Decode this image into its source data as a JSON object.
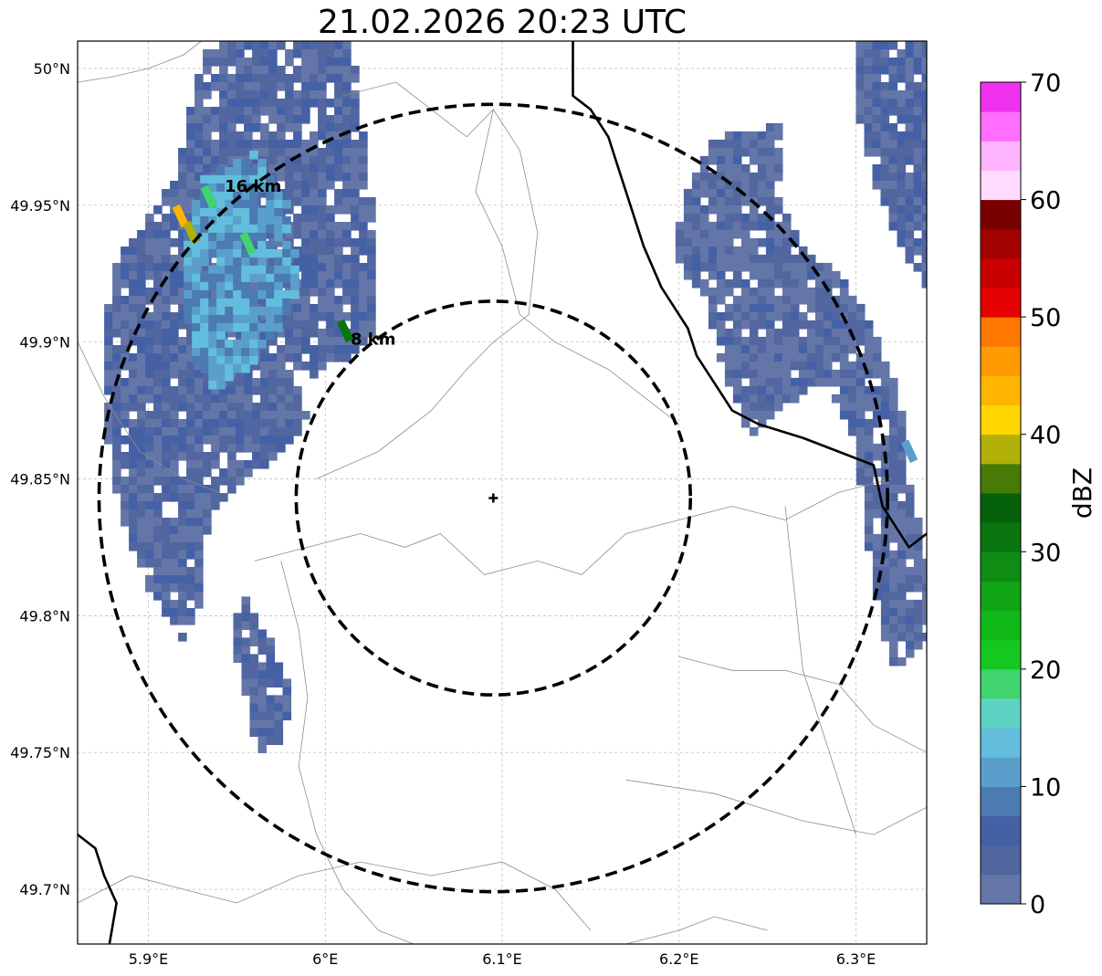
{
  "title": "21.02.2026 20:23 UTC",
  "map": {
    "lon_range": [
      5.86,
      6.34
    ],
    "lat_range": [
      49.68,
      50.01
    ],
    "lon_ticks": [
      {
        "value": 5.9,
        "label": "5.9°E"
      },
      {
        "value": 6.0,
        "label": "6°E"
      },
      {
        "value": 6.1,
        "label": "6.1°E"
      },
      {
        "value": 6.2,
        "label": "6.2°E"
      },
      {
        "value": 6.3,
        "label": "6.3°E"
      }
    ],
    "lat_ticks": [
      {
        "value": 50.0,
        "label": "50°N"
      },
      {
        "value": 49.95,
        "label": "49.95°N"
      },
      {
        "value": 49.9,
        "label": "49.9°N"
      },
      {
        "value": 49.85,
        "label": "49.85°N"
      },
      {
        "value": 49.8,
        "label": "49.8°N"
      },
      {
        "value": 49.75,
        "label": "49.75°N"
      },
      {
        "value": 49.7,
        "label": "49.7°N"
      }
    ],
    "center": {
      "lon": 6.095,
      "lat": 49.843
    },
    "range_rings": [
      {
        "km": 8,
        "label": "8 km"
      },
      {
        "km": 16,
        "label": "16 km"
      }
    ]
  },
  "colorbar": {
    "label": "dBZ",
    "min": 0,
    "max": 70,
    "ticks": [
      0,
      10,
      20,
      30,
      40,
      50,
      60,
      70
    ],
    "colors": [
      "#6476a8",
      "#5266a0",
      "#4461a6",
      "#4b7bb2",
      "#5a9fcb",
      "#63bedd",
      "#5fd3c3",
      "#3fd46e",
      "#14c820",
      "#10b818",
      "#0fa514",
      "#0e8c14",
      "#0b7510",
      "#05600a",
      "#487a08",
      "#b0b008",
      "#ffd600",
      "#ffb400",
      "#ff9a00",
      "#ff7800",
      "#e40000",
      "#c80000",
      "#a30000",
      "#7a0000",
      "#ffdcff",
      "#ffb4ff",
      "#ff6eff",
      "#f032f0"
    ]
  },
  "echoes": [
    {
      "name": "northwest-cell",
      "poly": [
        [
          5.935,
          50.01
        ],
        [
          6.015,
          50.01
        ],
        [
          6.025,
          49.96
        ],
        [
          6.03,
          49.93
        ],
        [
          6.03,
          49.905
        ],
        [
          6.015,
          49.895
        ],
        [
          5.985,
          49.885
        ],
        [
          5.99,
          49.87
        ],
        [
          5.975,
          49.86
        ],
        [
          5.965,
          49.855
        ],
        [
          5.945,
          49.845
        ],
        [
          5.935,
          49.835
        ],
        [
          5.93,
          49.82
        ],
        [
          5.93,
          49.805
        ],
        [
          5.92,
          49.79
        ],
        [
          5.9,
          49.81
        ],
        [
          5.885,
          49.835
        ],
        [
          5.875,
          49.87
        ],
        [
          5.875,
          49.905
        ],
        [
          5.882,
          49.93
        ],
        [
          5.9,
          49.945
        ],
        [
          5.915,
          49.96
        ],
        [
          5.925,
          49.99
        ]
      ],
      "base_dbz": 3
    },
    {
      "name": "northwest-core",
      "poly": [
        [
          5.93,
          49.96
        ],
        [
          5.96,
          49.97
        ],
        [
          5.98,
          49.95
        ],
        [
          5.985,
          49.92
        ],
        [
          5.975,
          49.905
        ],
        [
          5.955,
          49.89
        ],
        [
          5.935,
          49.88
        ],
        [
          5.925,
          49.895
        ],
        [
          5.92,
          49.92
        ],
        [
          5.922,
          49.94
        ]
      ],
      "base_dbz": 11
    },
    {
      "name": "southwest-trail",
      "poly": [
        [
          5.952,
          49.81
        ],
        [
          5.97,
          49.79
        ],
        [
          5.982,
          49.77
        ],
        [
          5.975,
          49.755
        ],
        [
          5.962,
          49.75
        ],
        [
          5.955,
          49.77
        ],
        [
          5.948,
          49.79
        ]
      ],
      "base_dbz": 3
    },
    {
      "name": "northeast-band",
      "poly": [
        [
          6.22,
          49.975
        ],
        [
          6.26,
          49.98
        ],
        [
          6.255,
          49.955
        ],
        [
          6.27,
          49.935
        ],
        [
          6.29,
          49.925
        ],
        [
          6.31,
          49.905
        ],
        [
          6.325,
          49.88
        ],
        [
          6.33,
          49.85
        ],
        [
          6.34,
          49.82
        ],
        [
          6.34,
          49.79
        ],
        [
          6.32,
          49.78
        ],
        [
          6.305,
          49.83
        ],
        [
          6.3,
          49.865
        ],
        [
          6.28,
          49.885
        ],
        [
          6.255,
          49.875
        ],
        [
          6.24,
          49.865
        ],
        [
          6.225,
          49.89
        ],
        [
          6.215,
          49.915
        ],
        [
          6.198,
          49.93
        ],
        [
          6.202,
          49.955
        ],
        [
          6.212,
          49.965
        ]
      ],
      "base_dbz": 2
    },
    {
      "name": "northeast-corner",
      "poly": [
        [
          6.3,
          50.01
        ],
        [
          6.34,
          50.01
        ],
        [
          6.34,
          49.92
        ],
        [
          6.325,
          49.935
        ],
        [
          6.31,
          49.96
        ],
        [
          6.3,
          49.985
        ]
      ],
      "base_dbz": 3
    }
  ],
  "hot_spots": [
    {
      "lon": 5.918,
      "lat": 49.946,
      "dbz": 44
    },
    {
      "lon": 5.924,
      "lat": 49.94,
      "dbz": 39
    },
    {
      "lon": 5.934,
      "lat": 49.953,
      "dbz": 19
    },
    {
      "lon": 5.956,
      "lat": 49.936,
      "dbz": 18
    },
    {
      "lon": 6.011,
      "lat": 49.904,
      "dbz": 32
    },
    {
      "lon": 6.33,
      "lat": 49.86,
      "dbz": 12
    }
  ],
  "roads": [
    {
      "name": "country-border-east",
      "pts": [
        [
          6.14,
          50.01
        ],
        [
          6.14,
          49.997
        ],
        [
          6.14,
          49.99
        ],
        [
          6.15,
          49.985
        ],
        [
          6.16,
          49.975
        ],
        [
          6.165,
          49.965
        ],
        [
          6.17,
          49.955
        ],
        [
          6.175,
          49.945
        ],
        [
          6.18,
          49.935
        ],
        [
          6.19,
          49.92
        ],
        [
          6.205,
          49.905
        ],
        [
          6.21,
          49.895
        ],
        [
          6.22,
          49.885
        ],
        [
          6.23,
          49.875
        ],
        [
          6.245,
          49.87
        ],
        [
          6.27,
          49.865
        ],
        [
          6.29,
          49.86
        ],
        [
          6.31,
          49.855
        ],
        [
          6.315,
          49.84
        ],
        [
          6.33,
          49.825
        ],
        [
          6.34,
          49.83
        ]
      ]
    },
    {
      "name": "country-border-southwest",
      "pts": [
        [
          5.86,
          49.72
        ],
        [
          5.87,
          49.715
        ],
        [
          5.875,
          49.705
        ],
        [
          5.882,
          49.695
        ],
        [
          5.878,
          49.68
        ]
      ]
    }
  ],
  "admin_lines": [
    [
      [
        5.86,
        49.995
      ],
      [
        5.88,
        49.997
      ],
      [
        5.9,
        50.0
      ],
      [
        5.92,
        50.005
      ],
      [
        5.93,
        50.01
      ]
    ],
    [
      [
        6.01,
        49.99
      ],
      [
        6.04,
        49.995
      ],
      [
        6.06,
        49.985
      ],
      [
        6.08,
        49.975
      ],
      [
        6.095,
        49.985
      ],
      [
        6.11,
        49.97
      ],
      [
        6.12,
        49.94
      ],
      [
        6.115,
        49.91
      ],
      [
        6.095,
        49.9
      ],
      [
        6.08,
        49.89
      ],
      [
        6.06,
        49.875
      ],
      [
        6.03,
        49.86
      ],
      [
        5.995,
        49.85
      ]
    ],
    [
      [
        6.095,
        49.985
      ],
      [
        6.085,
        49.955
      ],
      [
        6.1,
        49.935
      ],
      [
        6.11,
        49.91
      ],
      [
        6.13,
        49.9
      ],
      [
        6.16,
        49.89
      ],
      [
        6.18,
        49.88
      ],
      [
        6.2,
        49.87
      ]
    ],
    [
      [
        5.86,
        49.9
      ],
      [
        5.875,
        49.88
      ],
      [
        5.895,
        49.86
      ],
      [
        5.92,
        49.85
      ],
      [
        5.94,
        49.845
      ]
    ],
    [
      [
        5.96,
        49.82
      ],
      [
        5.99,
        49.825
      ],
      [
        6.02,
        49.83
      ],
      [
        6.045,
        49.825
      ],
      [
        6.065,
        49.83
      ],
      [
        6.09,
        49.815
      ],
      [
        6.12,
        49.82
      ],
      [
        6.145,
        49.815
      ],
      [
        6.17,
        49.83
      ],
      [
        6.2,
        49.835
      ],
      [
        6.23,
        49.84
      ],
      [
        6.26,
        49.835
      ],
      [
        6.29,
        49.845
      ],
      [
        6.32,
        49.85
      ]
    ],
    [
      [
        5.975,
        49.82
      ],
      [
        5.985,
        49.795
      ],
      [
        5.99,
        49.77
      ],
      [
        5.985,
        49.745
      ],
      [
        5.995,
        49.72
      ],
      [
        6.01,
        49.7
      ],
      [
        6.03,
        49.685
      ],
      [
        6.05,
        49.68
      ]
    ],
    [
      [
        5.86,
        49.695
      ],
      [
        5.89,
        49.705
      ],
      [
        5.92,
        49.7
      ],
      [
        5.95,
        49.695
      ],
      [
        5.985,
        49.705
      ],
      [
        6.02,
        49.71
      ],
      [
        6.06,
        49.705
      ],
      [
        6.1,
        49.71
      ],
      [
        6.13,
        49.7
      ],
      [
        6.15,
        49.685
      ]
    ],
    [
      [
        6.2,
        49.785
      ],
      [
        6.23,
        49.78
      ],
      [
        6.26,
        49.78
      ],
      [
        6.29,
        49.775
      ],
      [
        6.31,
        49.76
      ],
      [
        6.34,
        49.75
      ]
    ],
    [
      [
        6.17,
        49.74
      ],
      [
        6.22,
        49.735
      ],
      [
        6.27,
        49.725
      ],
      [
        6.31,
        49.72
      ],
      [
        6.34,
        49.73
      ]
    ],
    [
      [
        6.17,
        49.68
      ],
      [
        6.2,
        49.685
      ],
      [
        6.22,
        49.69
      ],
      [
        6.25,
        49.685
      ]
    ],
    [
      [
        6.26,
        49.84
      ],
      [
        6.265,
        49.81
      ],
      [
        6.27,
        49.78
      ],
      [
        6.28,
        49.76
      ],
      [
        6.29,
        49.74
      ],
      [
        6.3,
        49.72
      ]
    ]
  ]
}
